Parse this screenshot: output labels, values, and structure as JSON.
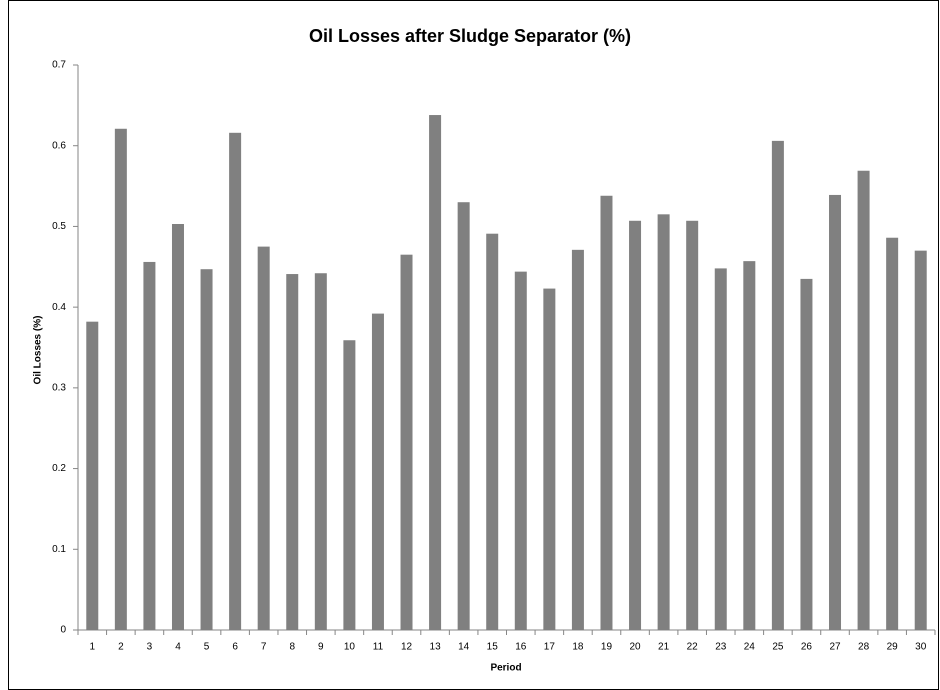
{
  "chart_data": {
    "type": "bar",
    "title": "Oil Losses after Sludge Separator (%)",
    "x_label": "Period",
    "y_label": "Oil Losses  (%)",
    "categories": [
      "1",
      "2",
      "3",
      "4",
      "5",
      "6",
      "7",
      "8",
      "9",
      "10",
      "11",
      "12",
      "13",
      "14",
      "15",
      "16",
      "17",
      "18",
      "19",
      "20",
      "21",
      "22",
      "23",
      "24",
      "25",
      "26",
      "27",
      "28",
      "29",
      "30"
    ],
    "values": [
      0.382,
      0.621,
      0.456,
      0.503,
      0.447,
      0.616,
      0.475,
      0.441,
      0.442,
      0.359,
      0.392,
      0.465,
      0.638,
      0.53,
      0.491,
      0.444,
      0.423,
      0.471,
      0.538,
      0.507,
      0.515,
      0.507,
      0.448,
      0.457,
      0.606,
      0.435,
      0.539,
      0.569,
      0.486,
      0.47
    ],
    "color": "#808080",
    "ylim": [
      0,
      0.7
    ],
    "yticks": [
      0,
      0.1,
      0.2,
      0.3,
      0.4,
      0.5,
      0.6,
      0.7
    ],
    "grid": false
  }
}
